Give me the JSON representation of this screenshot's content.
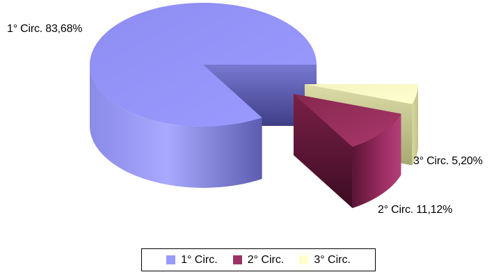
{
  "chart_data": {
    "type": "pie",
    "categories": [
      "1° Circ.",
      "2° Circ.",
      "3° Circ."
    ],
    "values": [
      83.68,
      11.12,
      5.2
    ],
    "data_labels": [
      "1° Circ. 83,68%",
      "2° Circ. 11,12%",
      "3° Circ. 5,20%"
    ],
    "colors": [
      "#9999ff",
      "#993366",
      "#ffffcc"
    ],
    "three_d": true,
    "exploded": [
      false,
      true,
      true
    ],
    "legend": {
      "position": "bottom",
      "entries": [
        "1° Circ.",
        "2° Circ.",
        "3° Circ."
      ]
    }
  }
}
